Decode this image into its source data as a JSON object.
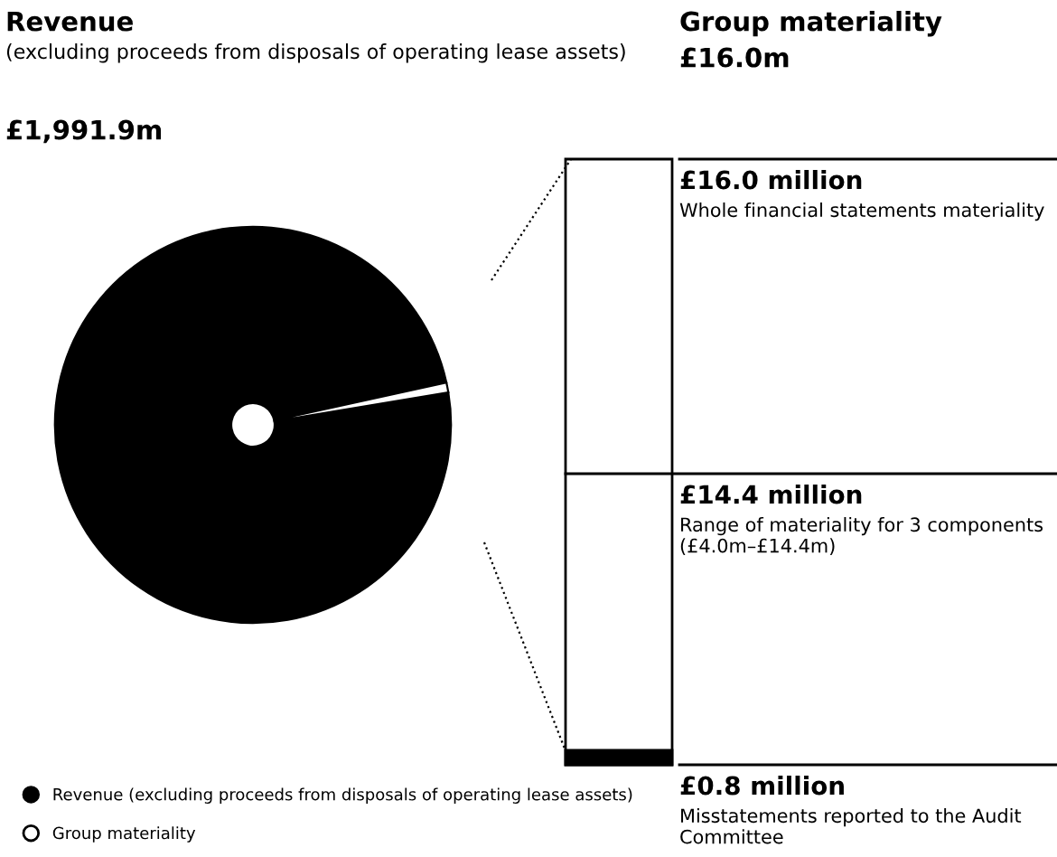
{
  "chart_data": [
    {
      "type": "pie",
      "title": "Revenue",
      "subtitle": "(excluding proceeds from disposals of operating lease assets)",
      "annotations": [
        "£1,991.9m"
      ],
      "categories": [
        "Revenue (excluding proceeds from disposals of operating lease assets)",
        "Group materiality"
      ],
      "values": [
        99.2,
        0.8
      ],
      "colors": [
        "#000000",
        "#ffffff"
      ],
      "legend": "bottom"
    },
    {
      "type": "other",
      "title": "Group materiality",
      "subtitle": "£16.0m",
      "annotations": [
        "£16.0 million",
        "Whole financial statements materiality",
        "£14.4 million",
        "Range of materiality for 3 components (£4.0m–£14.4m)",
        "£0.8 million",
        "Misstatements reported to the Audit Committee"
      ]
    }
  ]
}
